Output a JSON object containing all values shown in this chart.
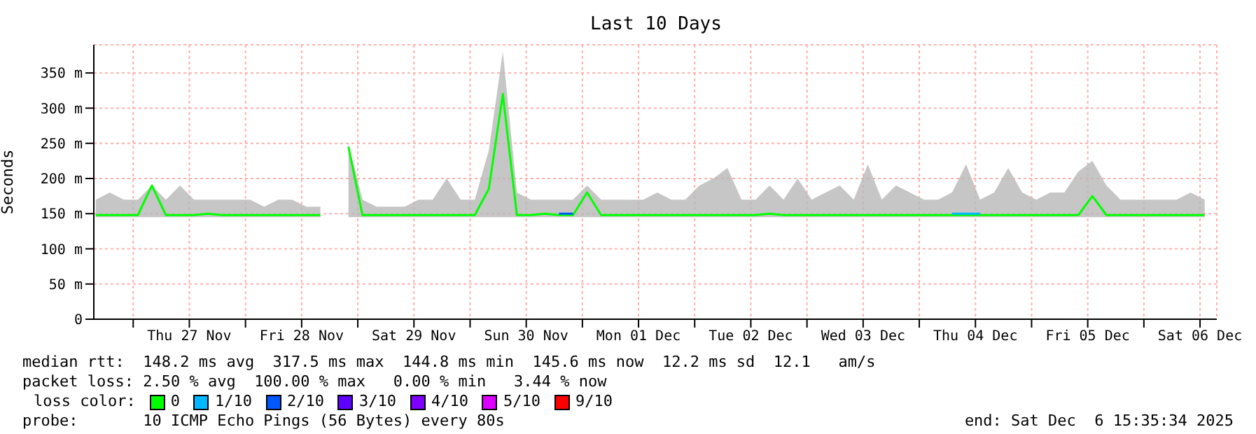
{
  "chart_data": {
    "type": "line",
    "title": "Last 10 Days",
    "ylabel": "Seconds",
    "x": [
      "2025-11-26T16:00",
      "2025-11-26T19:00",
      "2025-11-26T22:00",
      "2025-11-27T01:00",
      "2025-11-27T04:00",
      "2025-11-27T07:00",
      "2025-11-27T10:00",
      "2025-11-27T13:00",
      "2025-11-27T16:00",
      "2025-11-27T19:00",
      "2025-11-27T22:00",
      "2025-11-28T01:00",
      "2025-11-28T04:00",
      "2025-11-28T07:00",
      "2025-11-28T10:00",
      "2025-11-28T13:00",
      "2025-11-28T16:00",
      "2025-11-28T19:00",
      "2025-11-28T22:00",
      "2025-11-29T01:00",
      "2025-11-29T04:00",
      "2025-11-29T07:00",
      "2025-11-29T10:00",
      "2025-11-29T13:00",
      "2025-11-29T16:00",
      "2025-11-29T19:00",
      "2025-11-29T22:00",
      "2025-11-30T01:00",
      "2025-11-30T04:00",
      "2025-11-30T07:00",
      "2025-11-30T10:00",
      "2025-11-30T13:00",
      "2025-11-30T16:00",
      "2025-11-30T19:00",
      "2025-11-30T22:00",
      "2025-12-01T01:00",
      "2025-12-01T04:00",
      "2025-12-01T07:00",
      "2025-12-01T10:00",
      "2025-12-01T13:00",
      "2025-12-01T16:00",
      "2025-12-01T19:00",
      "2025-12-01T22:00",
      "2025-12-02T01:00",
      "2025-12-02T04:00",
      "2025-12-02T07:00",
      "2025-12-02T10:00",
      "2025-12-02T13:00",
      "2025-12-02T16:00",
      "2025-12-02T19:00",
      "2025-12-02T22:00",
      "2025-12-03T01:00",
      "2025-12-03T04:00",
      "2025-12-03T07:00",
      "2025-12-03T10:00",
      "2025-12-03T13:00",
      "2025-12-03T16:00",
      "2025-12-03T19:00",
      "2025-12-03T22:00",
      "2025-12-04T01:00",
      "2025-12-04T04:00",
      "2025-12-04T07:00",
      "2025-12-04T10:00",
      "2025-12-04T13:00",
      "2025-12-04T16:00",
      "2025-12-04T19:00",
      "2025-12-04T22:00",
      "2025-12-05T01:00",
      "2025-12-05T04:00",
      "2025-12-05T07:00",
      "2025-12-05T10:00",
      "2025-12-05T13:00",
      "2025-12-05T16:00",
      "2025-12-05T19:00",
      "2025-12-05T22:00",
      "2025-12-06T01:00",
      "2025-12-06T04:00",
      "2025-12-06T07:00",
      "2025-12-06T10:00",
      "2025-12-06T13:00"
    ],
    "series": [
      {
        "name": "0",
        "color": "#00ff00",
        "values": [
          148,
          148,
          148,
          148,
          190,
          148,
          148,
          148,
          150,
          148,
          148,
          148,
          148,
          148,
          148,
          148,
          148,
          null,
          245,
          148,
          148,
          148,
          148,
          148,
          148,
          148,
          148,
          148,
          185,
          320,
          148,
          148,
          150,
          148,
          148,
          180,
          148,
          148,
          148,
          148,
          148,
          148,
          148,
          148,
          148,
          148,
          148,
          148,
          150,
          148,
          148,
          148,
          148,
          148,
          148,
          148,
          148,
          148,
          148,
          148,
          148,
          148,
          148,
          148,
          148,
          148,
          148,
          148,
          148,
          148,
          148,
          175,
          148,
          148,
          148,
          148,
          148,
          148,
          148,
          148
        ],
        "lower": [
          145,
          145,
          145,
          145,
          145,
          145,
          145,
          145,
          145,
          145,
          145,
          145,
          145,
          145,
          145,
          145,
          145,
          null,
          145,
          145,
          145,
          145,
          145,
          145,
          145,
          145,
          145,
          145,
          145,
          145,
          145,
          145,
          145,
          145,
          145,
          145,
          145,
          145,
          145,
          145,
          145,
          145,
          145,
          145,
          145,
          145,
          145,
          145,
          145,
          145,
          145,
          145,
          145,
          145,
          145,
          145,
          145,
          145,
          145,
          145,
          145,
          145,
          145,
          145,
          145,
          145,
          145,
          145,
          145,
          145,
          145,
          145,
          145,
          145,
          145,
          145,
          145,
          145,
          145,
          145
        ],
        "upper": [
          170,
          180,
          170,
          170,
          190,
          170,
          190,
          170,
          170,
          170,
          170,
          170,
          160,
          170,
          170,
          160,
          160,
          null,
          250,
          170,
          160,
          160,
          160,
          170,
          170,
          200,
          170,
          170,
          240,
          380,
          180,
          170,
          170,
          170,
          170,
          190,
          170,
          170,
          170,
          170,
          180,
          170,
          170,
          190,
          200,
          215,
          170,
          170,
          190,
          170,
          200,
          170,
          180,
          190,
          170,
          220,
          170,
          190,
          180,
          170,
          170,
          180,
          220,
          170,
          180,
          215,
          180,
          170,
          180,
          180,
          210,
          225,
          190,
          170,
          170,
          170,
          170,
          170,
          180,
          170
        ]
      },
      {
        "name": "1/10",
        "color": "#00b8ff",
        "x": [
          "2025-12-04T07:00",
          "2025-12-04T10:00",
          "2025-12-04T13:00"
        ],
        "values": [
          150,
          150,
          150
        ]
      },
      {
        "name": "2/10",
        "color": "#0059ff",
        "x": [
          "2025-11-30T19:00",
          "2025-11-30T22:00"
        ],
        "values": [
          150,
          150
        ]
      },
      {
        "name": "3/10",
        "color": "#5e00ff",
        "values": [
          null,
          null,
          null,
          null,
          null,
          null,
          null,
          null,
          null,
          null,
          null,
          null,
          null,
          null,
          null,
          null,
          null,
          null,
          null,
          null,
          null,
          null,
          null,
          null,
          null,
          null,
          null,
          null,
          null,
          null,
          null,
          null,
          null,
          null,
          null,
          null,
          null,
          null,
          null,
          null,
          null,
          null,
          null,
          null,
          null,
          null,
          null,
          null,
          null,
          null,
          null,
          null,
          null,
          null,
          null,
          null,
          null,
          null,
          null,
          null,
          null,
          null,
          null,
          null,
          null,
          null,
          null,
          null,
          null,
          null,
          null,
          null,
          null,
          null,
          null,
          null,
          null,
          null,
          null,
          null
        ]
      },
      {
        "name": "4/10",
        "color": "#7e00ff",
        "values": [
          null,
          null,
          null,
          null,
          null,
          null,
          null,
          null,
          null,
          null,
          null,
          null,
          null,
          null,
          null,
          null,
          null,
          null,
          null,
          null,
          null,
          null,
          null,
          null,
          null,
          null,
          null,
          null,
          null,
          null,
          null,
          null,
          null,
          null,
          null,
          null,
          null,
          null,
          null,
          null,
          null,
          null,
          null,
          null,
          null,
          null,
          null,
          null,
          null,
          null,
          null,
          null,
          null,
          null,
          null,
          null,
          null,
          null,
          null,
          null,
          null,
          null,
          null,
          null,
          null,
          null,
          null,
          null,
          null,
          null,
          null,
          null,
          null,
          null,
          null,
          null,
          null,
          null,
          null,
          null
        ]
      },
      {
        "name": "5/10",
        "color": "#dd00ff",
        "values": [
          null,
          null,
          null,
          null,
          null,
          null,
          null,
          null,
          null,
          null,
          null,
          null,
          null,
          null,
          null,
          null,
          null,
          null,
          null,
          null,
          null,
          null,
          null,
          null,
          null,
          null,
          null,
          null,
          null,
          null,
          null,
          null,
          null,
          null,
          null,
          null,
          null,
          null,
          null,
          null,
          null,
          null,
          null,
          null,
          null,
          null,
          null,
          null,
          null,
          null,
          null,
          null,
          null,
          null,
          null,
          null,
          null,
          null,
          null,
          null,
          null,
          null,
          null,
          null,
          null,
          null,
          null,
          null,
          null,
          null,
          null,
          null,
          null,
          null,
          null,
          null,
          null,
          null,
          null,
          null
        ]
      },
      {
        "name": "9/10",
        "color": "#ff0000",
        "values": [
          null,
          null,
          null,
          null,
          null,
          null,
          null,
          null,
          null,
          null,
          null,
          null,
          null,
          null,
          null,
          null,
          null,
          null,
          null,
          null,
          null,
          null,
          null,
          null,
          null,
          null,
          null,
          null,
          null,
          null,
          null,
          null,
          null,
          null,
          null,
          null,
          null,
          null,
          null,
          null,
          null,
          null,
          null,
          null,
          null,
          null,
          null,
          null,
          null,
          null,
          null,
          null,
          null,
          null,
          null,
          null,
          null,
          null,
          null,
          null,
          null,
          null,
          null,
          null,
          null,
          null,
          null,
          null,
          null,
          null,
          null,
          null,
          null,
          null,
          null,
          null,
          null,
          null,
          null,
          null
        ]
      }
    ],
    "xlim": [
      "2025-11-26T15:35",
      "2025-12-06T15:35"
    ],
    "xticks": [
      {
        "value": "2025-11-27T00:00",
        "label": null
      },
      {
        "value": "2025-11-27T12:00",
        "label": "Thu 27 Nov"
      },
      {
        "value": "2025-11-28T00:00",
        "label": null
      },
      {
        "value": "2025-11-28T12:00",
        "label": "Fri 28 Nov"
      },
      {
        "value": "2025-11-29T00:00",
        "label": null
      },
      {
        "value": "2025-11-29T12:00",
        "label": "Sat 29 Nov"
      },
      {
        "value": "2025-11-30T00:00",
        "label": null
      },
      {
        "value": "2025-11-30T12:00",
        "label": "Sun 30 Nov"
      },
      {
        "value": "2025-12-01T00:00",
        "label": null
      },
      {
        "value": "2025-12-01T12:00",
        "label": "Mon 01 Dec"
      },
      {
        "value": "2025-12-02T00:00",
        "label": null
      },
      {
        "value": "2025-12-02T12:00",
        "label": "Tue 02 Dec"
      },
      {
        "value": "2025-12-03T00:00",
        "label": null
      },
      {
        "value": "2025-12-03T12:00",
        "label": "Wed 03 Dec"
      },
      {
        "value": "2025-12-04T00:00",
        "label": null
      },
      {
        "value": "2025-12-04T12:00",
        "label": "Thu 04 Dec"
      },
      {
        "value": "2025-12-05T00:00",
        "label": null
      },
      {
        "value": "2025-12-05T12:00",
        "label": "Fri 05 Dec"
      },
      {
        "value": "2025-12-06T00:00",
        "label": null
      },
      {
        "value": "2025-12-06T12:00",
        "label": "Sat 06 Dec"
      }
    ],
    "ylim": [
      0,
      390
    ],
    "yticks": [
      0,
      {
        "value": 50,
        "label": "50 m"
      },
      {
        "value": 100,
        "label": "100 m"
      },
      {
        "value": 150,
        "label": "150 m"
      },
      {
        "value": 200,
        "label": "200 m"
      },
      {
        "value": 250,
        "label": "250 m"
      },
      {
        "value": 300,
        "label": "300 m"
      },
      {
        "value": 350,
        "label": "350 m"
      }
    ],
    "grid": true,
    "legend": "bottom",
    "legend_title": "loss color:",
    "marker": "none",
    "line_style": "solid",
    "annotations": [
      "median rtt:  148.2 ms avg  317.5 ms max  144.8 ms min  145.6 ms now  12.2 ms sd  12.1   am/s",
      "packet loss: 2.50 % avg  100.00 % max   0.00 % min   3.44 % now",
      "probe:       10 ICMP Echo Pings (56 Bytes) every 80s",
      "end: Sat Dec  6 15:35:34 2025"
    ]
  }
}
